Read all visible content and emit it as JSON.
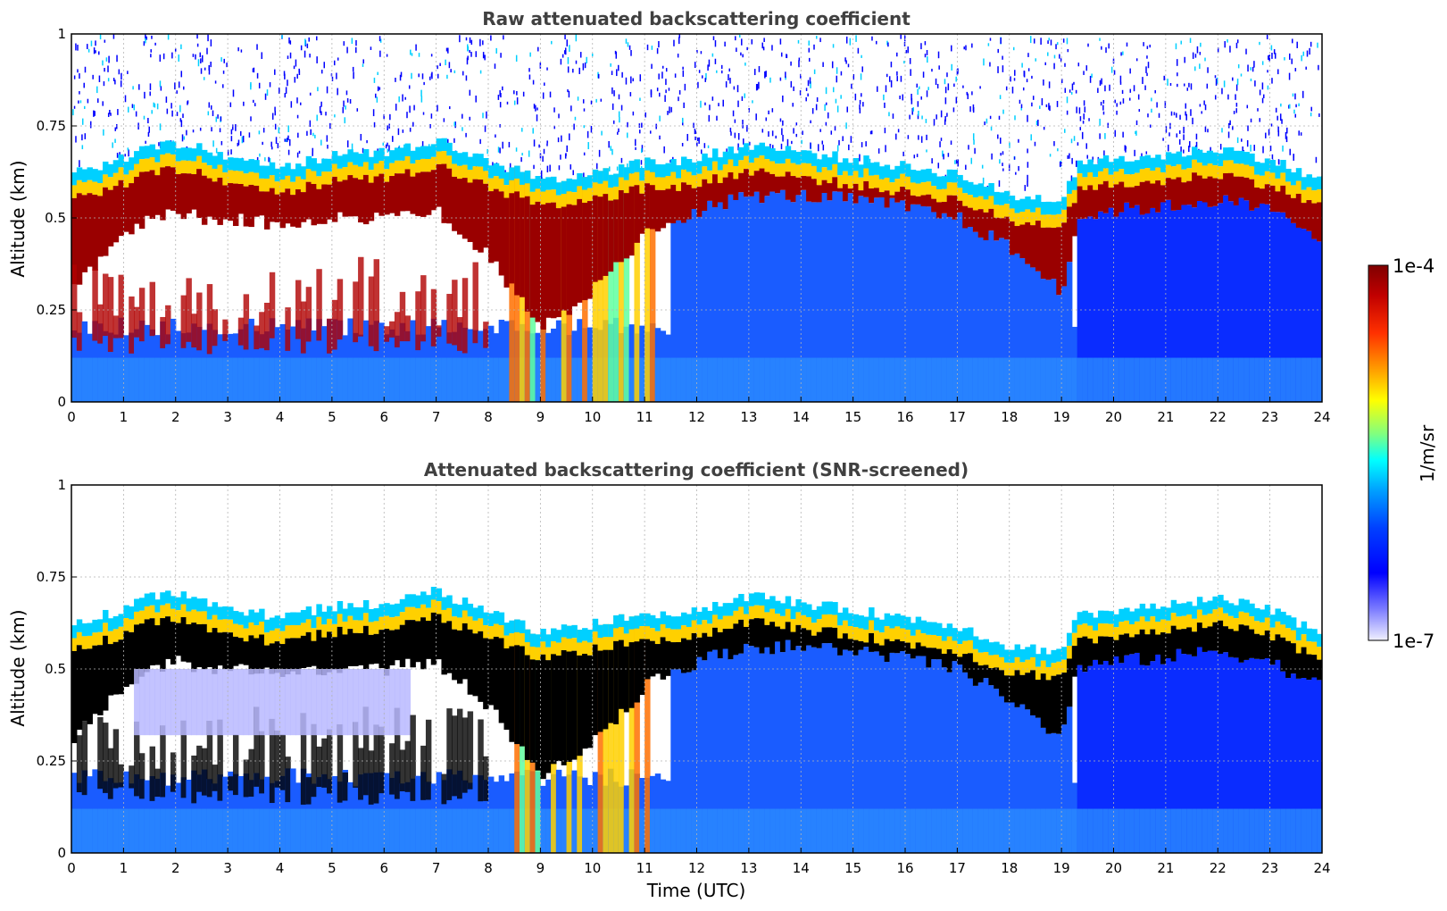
{
  "chart_data": [
    {
      "type": "heatmap",
      "title": "Raw attenuated backscattering coefficient",
      "xlabel": "",
      "ylabel": "Altitude (km)",
      "xlim": [
        0,
        24
      ],
      "ylim": [
        0,
        1
      ],
      "x_ticks": [
        "0",
        "1",
        "2",
        "3",
        "4",
        "5",
        "6",
        "7",
        "8",
        "9",
        "10",
        "11",
        "12",
        "13",
        "14",
        "15",
        "16",
        "17",
        "18",
        "19",
        "20",
        "21",
        "22",
        "23",
        "24"
      ],
      "y_ticks": [
        "0",
        "0.25",
        "0.5",
        "0.75",
        "1"
      ],
      "grid": true,
      "cloud_layer": {
        "x": [
          0,
          1,
          1.5,
          2,
          2.5,
          3,
          4,
          5,
          6,
          7,
          8,
          9,
          10,
          11,
          12,
          13,
          14,
          15,
          16,
          17,
          18,
          19,
          19.3,
          20,
          21,
          22,
          23,
          24
        ],
        "top": [
          0.62,
          0.66,
          0.7,
          0.7,
          0.69,
          0.67,
          0.64,
          0.67,
          0.68,
          0.71,
          0.66,
          0.6,
          0.62,
          0.65,
          0.66,
          0.7,
          0.68,
          0.66,
          0.64,
          0.62,
          0.56,
          0.55,
          0.64,
          0.66,
          0.67,
          0.69,
          0.66,
          0.6
        ],
        "base": [
          0.3,
          0.45,
          0.5,
          0.52,
          0.5,
          0.5,
          0.48,
          0.5,
          0.5,
          0.52,
          0.4,
          0.2,
          0.3,
          0.45,
          0.52,
          0.56,
          0.56,
          0.55,
          0.53,
          0.5,
          0.42,
          0.3,
          0.5,
          0.52,
          0.53,
          0.55,
          0.52,
          0.45
        ]
      }
    },
    {
      "type": "heatmap",
      "title": "Attenuated backscattering coefficient (SNR-screened)",
      "xlabel": "Time (UTC)",
      "ylabel": "Altitude (km)",
      "xlim": [
        0,
        24
      ],
      "ylim": [
        0,
        1
      ],
      "x_ticks": [
        "0",
        "1",
        "2",
        "3",
        "4",
        "5",
        "6",
        "7",
        "8",
        "9",
        "10",
        "11",
        "12",
        "13",
        "14",
        "15",
        "16",
        "17",
        "18",
        "19",
        "20",
        "21",
        "22",
        "23",
        "24"
      ],
      "y_ticks": [
        "0",
        "0.25",
        "0.5",
        "0.75",
        "1"
      ],
      "grid": true
    }
  ],
  "colorbar": {
    "label": "1/m/sr",
    "max_label": "1e-4",
    "min_label": "1e-7",
    "colors": [
      "#7f0000",
      "#b00000",
      "#e00000",
      "#ff3000",
      "#ff7000",
      "#ffa000",
      "#ffd000",
      "#e0ff20",
      "#a0ff60",
      "#60ffa0",
      "#20ffe0",
      "#00d0ff",
      "#00a0ff",
      "#0070ff",
      "#0040ff",
      "#0010ff",
      "#1010e0",
      "#6060f0",
      "#a0a0ff",
      "#e8e8ff"
    ]
  }
}
